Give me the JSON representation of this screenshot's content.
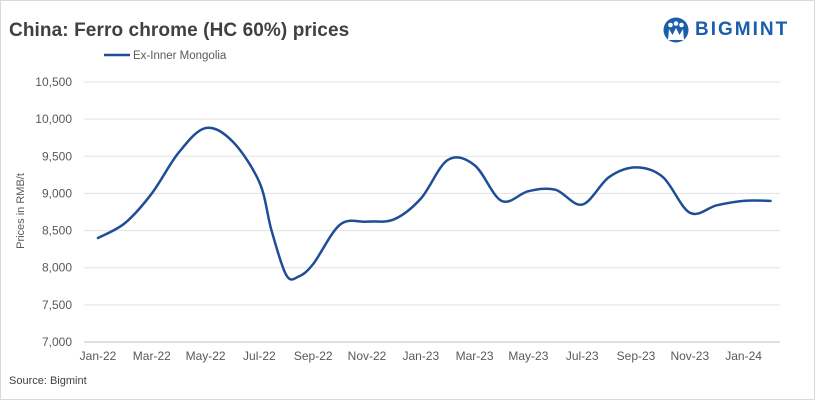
{
  "header": {
    "title": "China: Ferro chrome (HC 60%) prices",
    "logo_text": "BIGMINT"
  },
  "footer": {
    "source": "Source: Bigmint"
  },
  "colors": {
    "series": "#1f4e96",
    "accent": "#1b5faa",
    "grid": "#e3e3e3"
  },
  "icons": {
    "logo": "bigmint-logo-icon"
  },
  "chart_data": {
    "type": "line",
    "title": "China: Ferro chrome (HC 60%) prices",
    "xlabel": "",
    "ylabel": "Prices in RMB/t",
    "ylim": [
      7000,
      10500
    ],
    "y_ticks": [
      "7,000",
      "7,500",
      "8,000",
      "8,500",
      "9,000",
      "9,500",
      "10,000",
      "10,500"
    ],
    "y_tick_values": [
      7000,
      7500,
      8000,
      8500,
      9000,
      9500,
      10000,
      10500
    ],
    "x_tick_labels": [
      "Jan-22",
      "Mar-22",
      "May-22",
      "Jul-22",
      "Sep-22",
      "Nov-22",
      "Jan-23",
      "Mar-23",
      "May-23",
      "Jul-23",
      "Sep-23",
      "Nov-23",
      "Jan-24"
    ],
    "grid": true,
    "legend_position": "top-left",
    "series": [
      {
        "name": "Ex-Inner Mongolia",
        "x": [
          "2022-01-01",
          "2022-02-01",
          "2022-03-01",
          "2022-04-01",
          "2022-05-01",
          "2022-06-01",
          "2022-07-01",
          "2022-07-15",
          "2022-08-01",
          "2022-08-15",
          "2022-09-01",
          "2022-10-01",
          "2022-11-01",
          "2022-12-01",
          "2023-01-01",
          "2023-02-01",
          "2023-03-01",
          "2023-04-01",
          "2023-05-01",
          "2023-06-01",
          "2023-07-01",
          "2023-08-01",
          "2023-09-01",
          "2023-10-01",
          "2023-11-01",
          "2023-12-01",
          "2024-01-01",
          "2024-02-01"
        ],
        "values": [
          8400,
          8600,
          9000,
          9550,
          9880,
          9700,
          9150,
          8500,
          7900,
          7880,
          8050,
          8580,
          8620,
          8650,
          8930,
          9450,
          9380,
          8900,
          9030,
          9050,
          8850,
          9220,
          9350,
          9220,
          8740,
          8840,
          8900,
          8900
        ]
      }
    ]
  }
}
